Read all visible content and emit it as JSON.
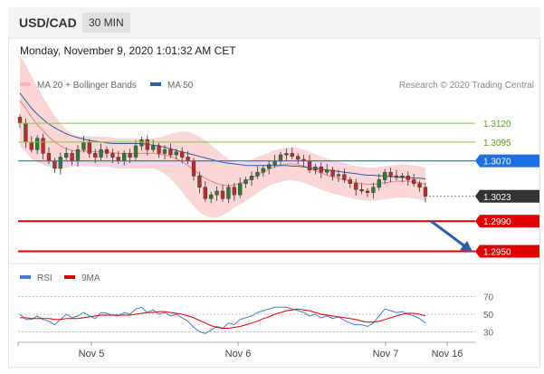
{
  "header": {
    "pair": "USD/CAD",
    "timeframe": "30 MIN"
  },
  "datetime": "Monday, November 9, 2020 1:01:32 AM CET",
  "legend": [
    {
      "label": "MA 20 + Bollinger Bands",
      "color": "#f08080"
    },
    {
      "label": "MA 50",
      "color": "#2f5f9f"
    }
  ],
  "credit": "Research © 2020 Trading Central",
  "chart_data": {
    "type": "candlestick",
    "price_axis": {
      "min": 1.2935,
      "max": 1.3185
    },
    "x_ticks": [
      "Nov 5",
      "Nov 6",
      "Nov 7",
      "Nov 16"
    ],
    "last_price": 1.3023,
    "levels": [
      {
        "label": "1.3120",
        "value": 1.312,
        "kind": "resistance"
      },
      {
        "label": "1.3095",
        "value": 1.3095,
        "kind": "resistance"
      },
      {
        "label": "1.3070",
        "value": 1.307,
        "kind": "pivot"
      },
      {
        "label": "1.3023",
        "value": 1.3023,
        "kind": "last"
      },
      {
        "label": "1.2990",
        "value": 1.299,
        "kind": "support"
      },
      {
        "label": "1.2950",
        "value": 1.295,
        "kind": "support"
      }
    ],
    "colors": {
      "up": "#2e7d32",
      "down": "#c62828",
      "resistance": "#8bc34a",
      "pivot": "#1e6fe0",
      "support": "#e00000",
      "last": "#333333"
    },
    "closes": [
      1.312,
      1.3095,
      1.3085,
      1.31,
      1.308,
      1.307,
      1.306,
      1.3075,
      1.308,
      1.307,
      1.3085,
      1.3095,
      1.308,
      1.3075,
      1.3085,
      1.308,
      1.3075,
      1.307,
      1.308,
      1.3075,
      1.309,
      1.3098,
      1.3085,
      1.309,
      1.308,
      1.3085,
      1.3078,
      1.3082,
      1.3075,
      1.307,
      1.305,
      1.3035,
      1.302,
      1.3025,
      1.303,
      1.302,
      1.3035,
      1.3025,
      1.304,
      1.3045,
      1.305,
      1.3055,
      1.306,
      1.3065,
      1.307,
      1.3078,
      1.308,
      1.3076,
      1.3072,
      1.307,
      1.3058,
      1.3062,
      1.3055,
      1.3058,
      1.305,
      1.3052,
      1.3045,
      1.304,
      1.3032,
      1.303,
      1.3028,
      1.3035,
      1.3045,
      1.3055,
      1.305,
      1.3048,
      1.305,
      1.3045,
      1.304,
      1.3035,
      1.3023
    ],
    "ma20": [
      1.315,
      1.314,
      1.3128,
      1.3118,
      1.311,
      1.3102,
      1.3095,
      1.309,
      1.3086,
      1.3084,
      1.3083,
      1.3083,
      1.3083,
      1.3082,
      1.3082,
      1.3082,
      1.3081,
      1.308,
      1.308,
      1.308,
      1.308,
      1.308,
      1.308,
      1.308,
      1.3079,
      1.3078,
      1.3076,
      1.3073,
      1.3069,
      1.3064,
      1.3058,
      1.3052,
      1.3047,
      1.3043,
      1.304,
      1.3038,
      1.3037,
      1.3038,
      1.304,
      1.3043,
      1.3047,
      1.3051,
      1.3055,
      1.3059,
      1.3062,
      1.3064,
      1.3066,
      1.3066,
      1.3065,
      1.3063,
      1.306,
      1.3057,
      1.3054,
      1.3051,
      1.3049,
      1.3047,
      1.3045,
      1.3043,
      1.3041,
      1.304,
      1.3039,
      1.3039,
      1.304,
      1.3041,
      1.3042,
      1.3043,
      1.3043,
      1.3043,
      1.3042,
      1.3041,
      1.3039
    ],
    "ma50": [
      1.316,
      1.315,
      1.314,
      1.3132,
      1.3125,
      1.3119,
      1.3114,
      1.311,
      1.3106,
      1.3103,
      1.3101,
      1.3099,
      1.3097,
      1.3096,
      1.3095,
      1.3094,
      1.3093,
      1.3093,
      1.3093,
      1.3093,
      1.3093,
      1.3093,
      1.3092,
      1.3091,
      1.309,
      1.3088,
      1.3086,
      1.3084,
      1.3082,
      1.308,
      1.3078,
      1.3076,
      1.3074,
      1.3072,
      1.307,
      1.3068,
      1.3067,
      1.3066,
      1.3065,
      1.3064,
      1.3064,
      1.3064,
      1.3064,
      1.3064,
      1.3064,
      1.3064,
      1.3064,
      1.3063,
      1.3063,
      1.3062,
      1.3061,
      1.306,
      1.3059,
      1.3058,
      1.3057,
      1.3056,
      1.3055,
      1.3054,
      1.3053,
      1.3052,
      1.3051,
      1.3051,
      1.305,
      1.305,
      1.3049,
      1.3049,
      1.3048,
      1.3048,
      1.3047,
      1.3047,
      1.3046
    ],
    "band_width": [
      0.006,
      0.0058,
      0.0055,
      0.005,
      0.0045,
      0.004,
      0.0035,
      0.003,
      0.0025,
      0.0022,
      0.002,
      0.002,
      0.002,
      0.002,
      0.002,
      0.002,
      0.002,
      0.002,
      0.002,
      0.002,
      0.002,
      0.002,
      0.002,
      0.002,
      0.0022,
      0.0025,
      0.003,
      0.0035,
      0.004,
      0.0045,
      0.0048,
      0.005,
      0.005,
      0.0048,
      0.0045,
      0.004,
      0.0035,
      0.003,
      0.0028,
      0.0026,
      0.0025,
      0.0024,
      0.0023,
      0.0022,
      0.0022,
      0.0022,
      0.0022,
      0.0022,
      0.0022,
      0.0022,
      0.0022,
      0.0022,
      0.0022,
      0.0022,
      0.0022,
      0.0022,
      0.0022,
      0.0022,
      0.0022,
      0.0022,
      0.0022,
      0.0022,
      0.0022,
      0.0022,
      0.0022,
      0.0022,
      0.0022,
      0.0022,
      0.0022,
      0.0022,
      0.0022
    ],
    "indicator": {
      "legend": [
        {
          "label": "RSI",
          "color": "#4a78d6"
        },
        {
          "label": "9MA",
          "color": "#e00000"
        }
      ],
      "levels": [
        70,
        50,
        30
      ],
      "ylim": [
        20,
        80
      ],
      "rsi": [
        50,
        44,
        44,
        48,
        44,
        42,
        38,
        44,
        50,
        46,
        48,
        52,
        48,
        45,
        52,
        51,
        49,
        48,
        52,
        50,
        56,
        58,
        52,
        55,
        50,
        52,
        48,
        50,
        46,
        42,
        35,
        30,
        28,
        32,
        36,
        34,
        40,
        38,
        44,
        46,
        48,
        52,
        54,
        56,
        58,
        58,
        58,
        56,
        54,
        52,
        48,
        50,
        46,
        48,
        45,
        47,
        43,
        40,
        38,
        38,
        36,
        40,
        48,
        56,
        54,
        52,
        53,
        50,
        48,
        45,
        40
      ],
      "ma9": [
        46,
        46,
        45,
        45,
        45,
        45,
        44,
        44,
        45,
        45,
        45,
        46,
        47,
        48,
        49,
        49,
        49,
        49,
        49,
        49,
        50,
        51,
        52,
        52,
        53,
        53,
        52,
        51,
        50,
        48,
        46,
        43,
        40,
        37,
        35,
        34,
        34,
        35,
        36,
        38,
        40,
        42,
        45,
        47,
        50,
        52,
        54,
        55,
        56,
        55,
        54,
        52,
        50,
        49,
        48,
        47,
        46,
        45,
        44,
        42,
        41,
        41,
        42,
        44,
        46,
        48,
        50,
        51,
        51,
        50,
        48
      ]
    }
  }
}
